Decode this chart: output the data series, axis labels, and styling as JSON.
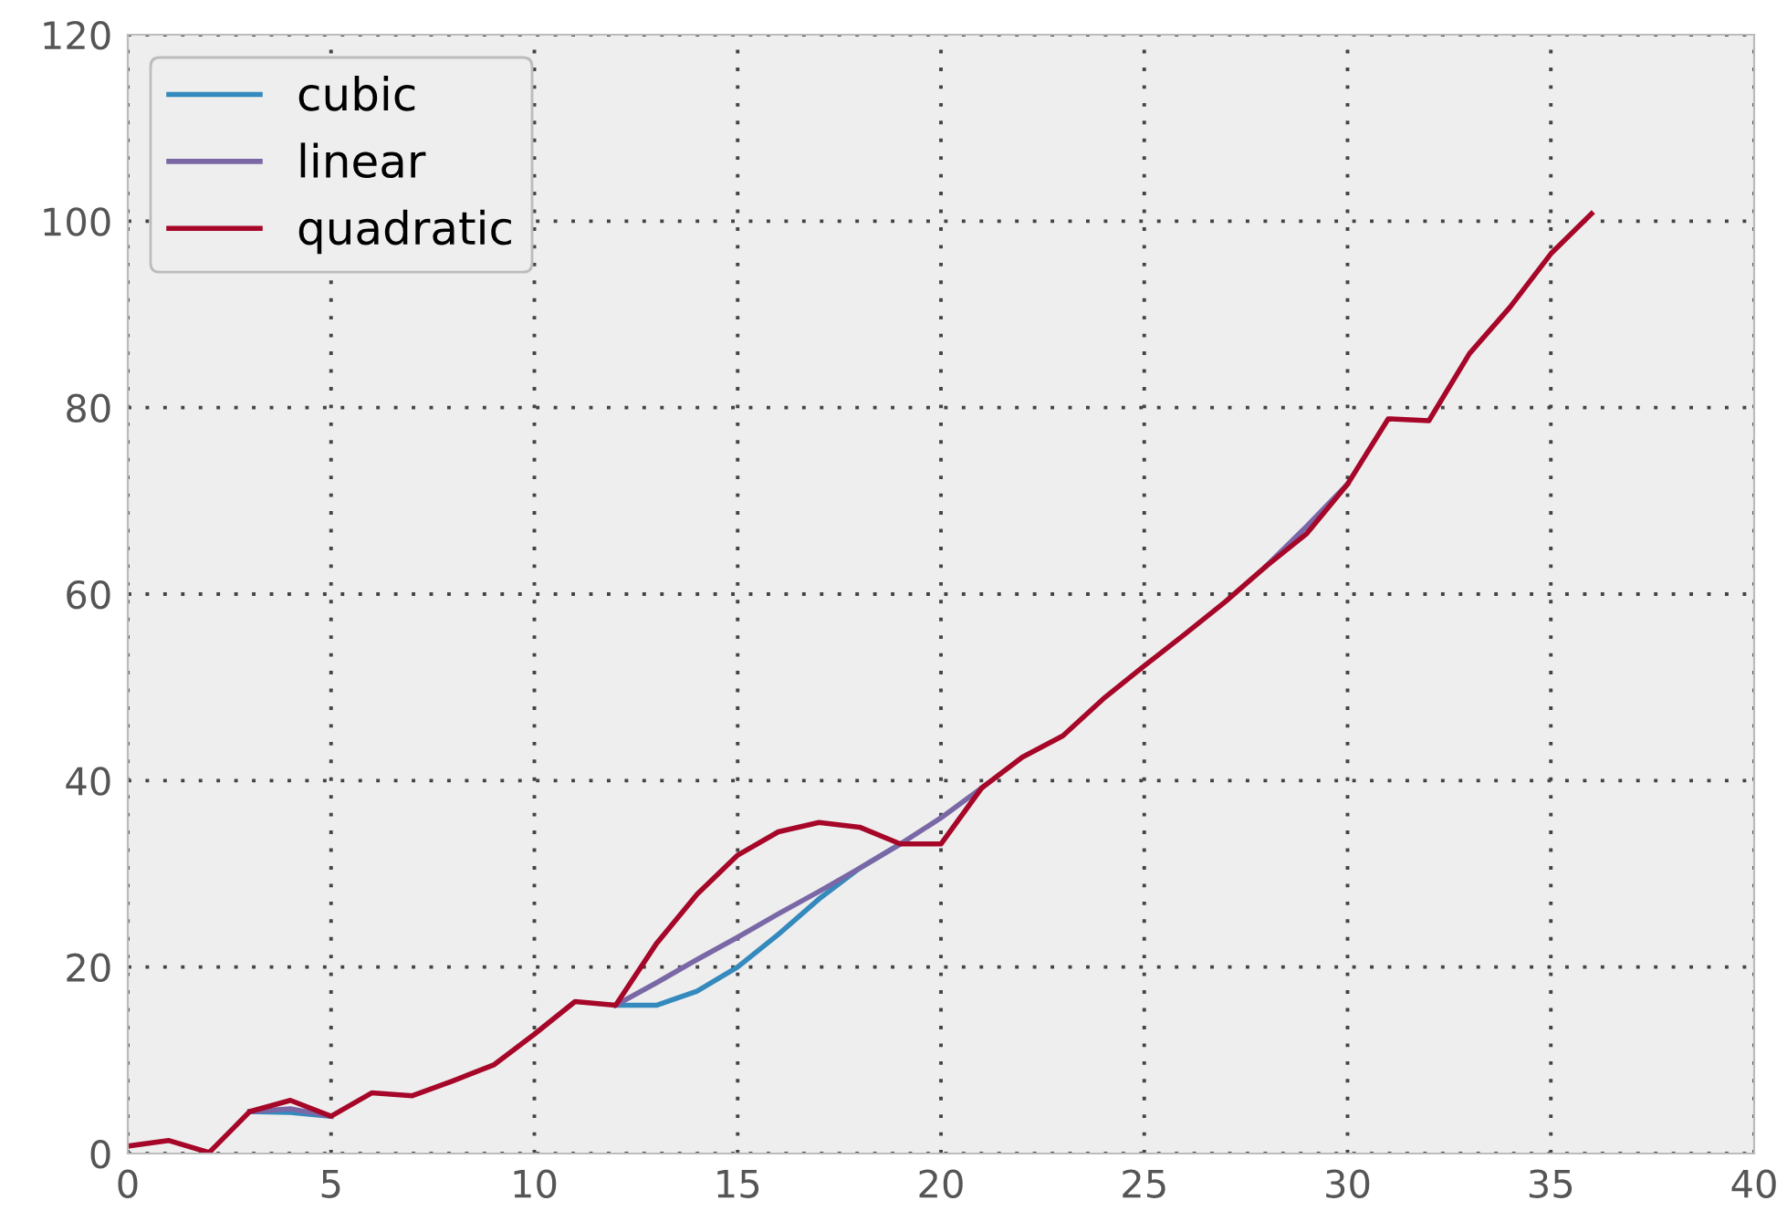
{
  "chart_data": {
    "type": "line",
    "x": [
      0,
      1,
      2,
      3,
      4,
      5,
      6,
      7,
      8,
      9,
      10,
      11,
      12,
      13,
      14,
      15,
      16,
      17,
      18,
      19,
      20,
      21,
      22,
      23,
      24,
      25,
      26,
      27,
      28,
      29,
      30,
      31,
      32,
      33,
      34,
      35,
      36
    ],
    "series": [
      {
        "name": "cubic",
        "color": "#348abd",
        "values": [
          null,
          null,
          null,
          4.5,
          4.4,
          4.0,
          null,
          null,
          null,
          null,
          null,
          null,
          15.9,
          15.9,
          17.4,
          20.0,
          23.5,
          27.3,
          30.6,
          33.2,
          null,
          null,
          null,
          null,
          null,
          null,
          null,
          null,
          null,
          null,
          null,
          null,
          null,
          null,
          null,
          null,
          null
        ]
      },
      {
        "name": "linear",
        "color": "#7a68a6",
        "values": [
          null,
          null,
          null,
          4.5,
          4.8,
          4.0,
          null,
          null,
          null,
          null,
          null,
          null,
          15.9,
          18.3,
          20.8,
          23.2,
          25.7,
          28.1,
          30.6,
          33.2,
          36.0,
          39.2,
          null,
          null,
          null,
          null,
          null,
          null,
          63.0,
          67.3,
          71.8,
          null,
          null,
          null,
          null,
          null,
          null
        ]
      },
      {
        "name": "quadratic",
        "color": "#a60628",
        "values": [
          0.8,
          1.4,
          0.1,
          4.5,
          5.7,
          4.0,
          6.5,
          6.2,
          7.8,
          9.5,
          12.8,
          16.3,
          15.9,
          22.5,
          27.8,
          32.0,
          34.5,
          35.5,
          35.0,
          33.2,
          33.2,
          39.2,
          42.5,
          44.8,
          48.8,
          52.3,
          55.7,
          59.2,
          63.0,
          66.5,
          71.8,
          78.8,
          78.6,
          85.8,
          90.8,
          96.5,
          100.8
        ]
      }
    ],
    "xlim": [
      0,
      40
    ],
    "xticks": [
      0,
      5,
      10,
      15,
      20,
      25,
      30,
      35,
      40
    ],
    "ylim": [
      0,
      120
    ],
    "yticks": [
      0,
      20,
      40,
      60,
      80,
      100,
      120
    ],
    "grid": true,
    "legend": "top left",
    "line_style": "solid",
    "marker": "none"
  }
}
